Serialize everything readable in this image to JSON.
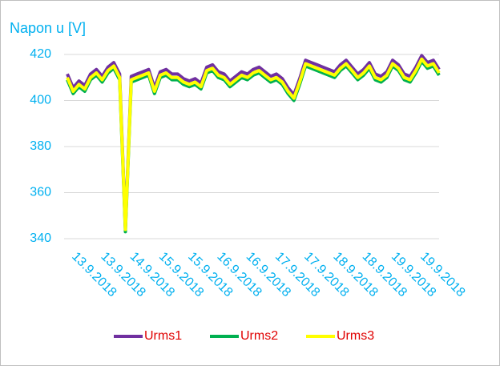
{
  "chart_data": {
    "type": "line",
    "y_axis_label": "Napon u [V]",
    "categories": [
      "13.9.2018",
      null,
      null,
      null,
      null,
      "13.9.2018",
      null,
      null,
      null,
      null,
      "14.9.2018",
      null,
      null,
      null,
      null,
      "15.9.2018",
      null,
      null,
      null,
      null,
      "15.9.2018",
      null,
      null,
      null,
      null,
      "16.9.2018",
      null,
      null,
      null,
      null,
      "16.9.2018",
      null,
      null,
      null,
      null,
      "17.9.2018",
      null,
      null,
      null,
      null,
      "17.9.2018",
      null,
      null,
      null,
      null,
      "18.9.2018",
      null,
      null,
      null,
      null,
      "18.9.2018",
      null,
      null,
      null,
      null,
      "19.9.2018",
      null,
      null,
      null,
      null,
      "19.9.2018",
      null,
      null,
      null,
      null
    ],
    "series": [
      {
        "name": "Urms1",
        "color": "#7030a0",
        "values": [
          411.5,
          405.5,
          408.5,
          406.5,
          411.5,
          413.5,
          410.5,
          414.5,
          416.5,
          411.5,
          345,
          410.5,
          411.5,
          412.5,
          413.5,
          405.5,
          412.5,
          413.5,
          411.5,
          411.5,
          409.5,
          408.5,
          409.5,
          407.5,
          414.5,
          415.5,
          412.5,
          411.5,
          408.5,
          410.5,
          412.5,
          411.5,
          413.5,
          414.5,
          412.5,
          410.5,
          411.5,
          409.5,
          405.5,
          402.5,
          409.5,
          417.5,
          416.5,
          415.5,
          414.5,
          413.5,
          412.5,
          415.5,
          417.5,
          414.5,
          411.5,
          413.5,
          416.5,
          411.5,
          410.5,
          412.5,
          417.5,
          415.5,
          411.5,
          410.5,
          414.5,
          419.5,
          416.5,
          417.5,
          413.5
        ]
      },
      {
        "name": "Urms2",
        "color": "#00b050",
        "values": [
          409,
          403,
          406,
          404,
          409,
          411,
          408,
          412,
          414,
          409,
          343,
          408,
          409,
          410,
          411,
          403,
          410,
          411,
          409,
          409,
          407,
          406,
          407,
          405,
          412,
          413,
          410,
          409,
          406,
          408,
          410,
          409,
          411,
          412,
          410,
          408,
          409,
          407,
          403,
          400,
          407,
          415,
          414,
          413,
          412,
          411,
          410,
          413,
          415,
          412,
          409,
          411,
          414,
          409,
          408,
          410,
          415,
          413,
          409,
          408,
          412,
          417,
          414,
          415,
          411
        ]
      },
      {
        "name": "Urms3",
        "color": "#ffff00",
        "values": [
          410,
          404,
          407,
          405,
          410,
          412,
          409,
          413,
          415,
          410,
          344,
          409,
          410,
          411,
          412,
          404,
          411,
          412,
          410,
          410,
          408,
          407,
          408,
          406,
          413,
          414,
          411,
          410,
          407,
          409,
          411,
          410,
          412,
          413,
          411,
          409,
          410,
          408,
          404,
          401,
          408,
          416,
          415,
          414,
          413,
          412,
          411,
          414,
          416,
          413,
          410,
          412,
          415,
          410,
          409,
          411,
          416,
          414,
          410,
          409,
          413,
          418,
          415,
          416,
          412
        ]
      }
    ],
    "ylim": [
      340,
      420
    ],
    "yticks": [
      340,
      360,
      380,
      400,
      420
    ],
    "grid": true,
    "legend": "bottom"
  }
}
